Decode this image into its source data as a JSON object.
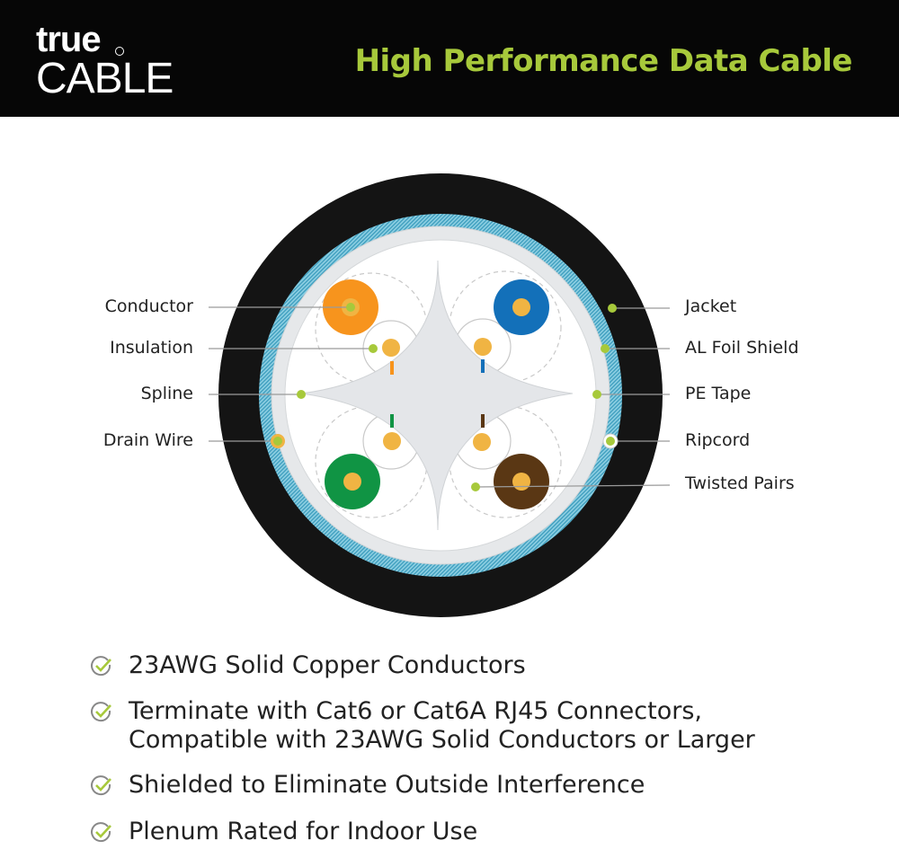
{
  "header": {
    "logo_top": "true",
    "logo_bottom": "CABLE",
    "title": "High Performance Data Cable"
  },
  "labels_left": [
    "Conductor",
    "Insulation",
    "Spline",
    "Drain Wire"
  ],
  "labels_right": [
    "Jacket",
    "AL Foil Shield",
    "PE Tape",
    "Ripcord",
    "Twisted Pairs"
  ],
  "features": [
    {
      "icon": "check-circle-icon",
      "lines": [
        "23AWG Solid Copper Conductors"
      ]
    },
    {
      "icon": "check-circle-icon",
      "lines": [
        "Terminate with Cat6 or Cat6A RJ45 Connectors,",
        "Compatible with 23AWG Solid Conductors or Larger"
      ]
    },
    {
      "icon": "check-circle-icon",
      "lines": [
        "Shielded to Eliminate Outside Interference"
      ]
    },
    {
      "icon": "check-circle-icon",
      "lines": [
        "Plenum Rated for Indoor Use"
      ]
    }
  ],
  "colors": {
    "accent": "#a7c93b",
    "jacket": "#141414",
    "foil": "#5bb6d2",
    "orange": "#f7941d",
    "blue": "#1370b9",
    "green": "#109444",
    "brown": "#5a3714",
    "copper": "#f0b443"
  }
}
